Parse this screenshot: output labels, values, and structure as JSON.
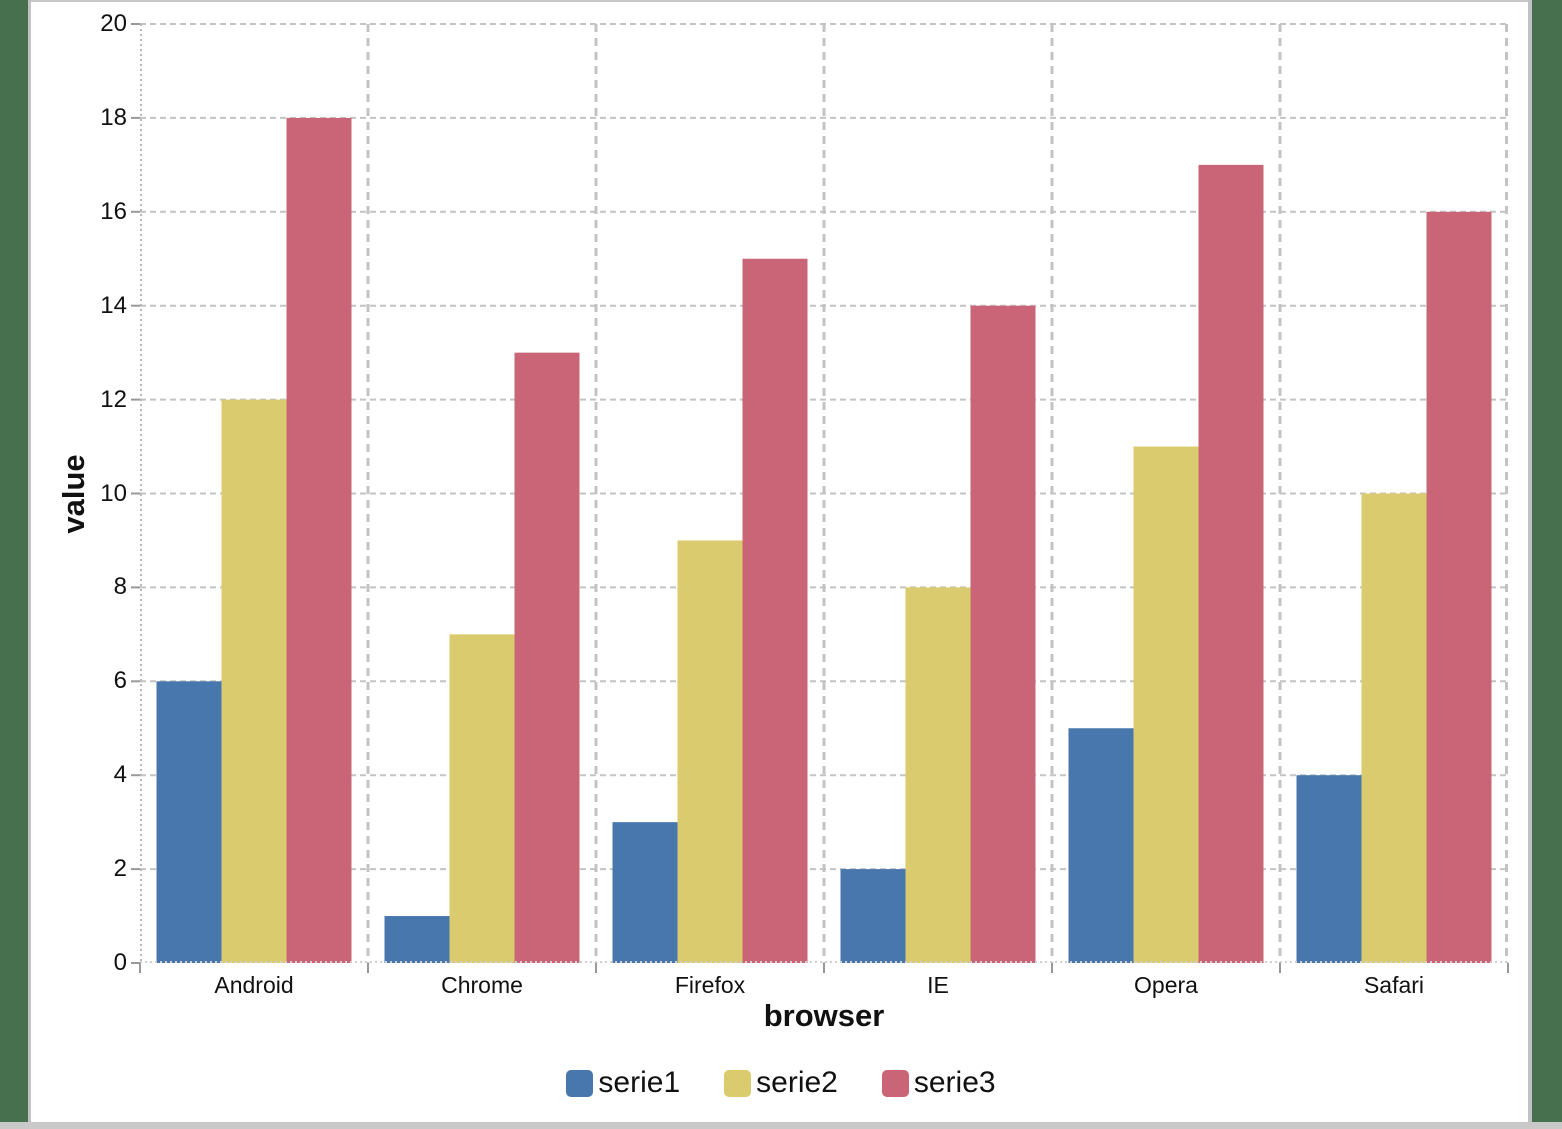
{
  "frame": {
    "desktop_color": "#47714E",
    "border_color": "#C5C5C5",
    "panel_color": "#FFFFFF"
  },
  "chart_data": {
    "type": "bar",
    "title": "",
    "xlabel": "browser",
    "ylabel": "value",
    "categories": [
      "Android",
      "Chrome",
      "Firefox",
      "IE",
      "Opera",
      "Safari"
    ],
    "series": [
      {
        "name": "serie1",
        "color": "#4777AC",
        "values": [
          6,
          1,
          3,
          2,
          5,
          4
        ]
      },
      {
        "name": "serie2",
        "color": "#DACC6E",
        "values": [
          12,
          7,
          9,
          8,
          11,
          10
        ]
      },
      {
        "name": "serie3",
        "color": "#C96577",
        "values": [
          18,
          13,
          15,
          14,
          17,
          16
        ]
      }
    ],
    "ylim": [
      0,
      20
    ],
    "yticks": [
      0,
      2,
      4,
      6,
      8,
      10,
      12,
      14,
      16,
      18,
      20
    ],
    "grid": "dashed",
    "gridline_color": "#C3C3C3",
    "axis_line_color": "#B8B8B8",
    "tick_color": "#999999",
    "text_color": "#111111",
    "legend_position": "bottom"
  }
}
